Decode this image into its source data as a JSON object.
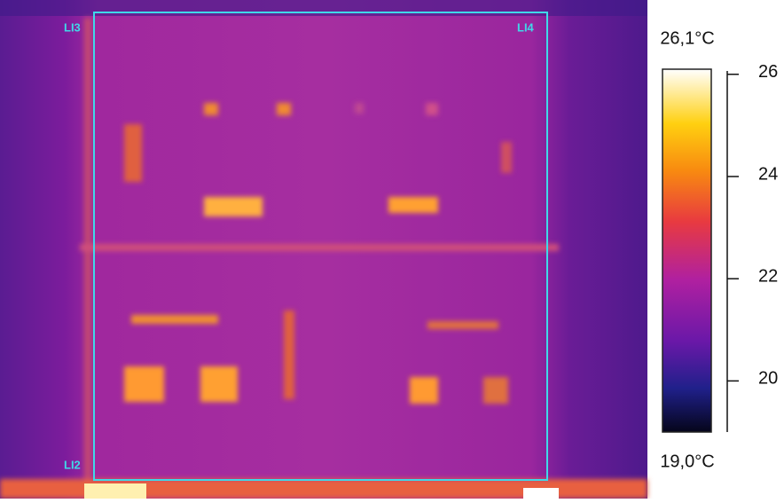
{
  "image": {
    "markers": [
      "LI3",
      "LI4",
      "LI2"
    ]
  },
  "scale": {
    "lim": [
      {
        "value": 19.0,
        "label": "19,0°C"
      },
      {
        "value": 26.1,
        "label": "26,1°C"
      }
    ],
    "ticks": [
      20,
      22,
      24,
      26
    ]
  }
}
